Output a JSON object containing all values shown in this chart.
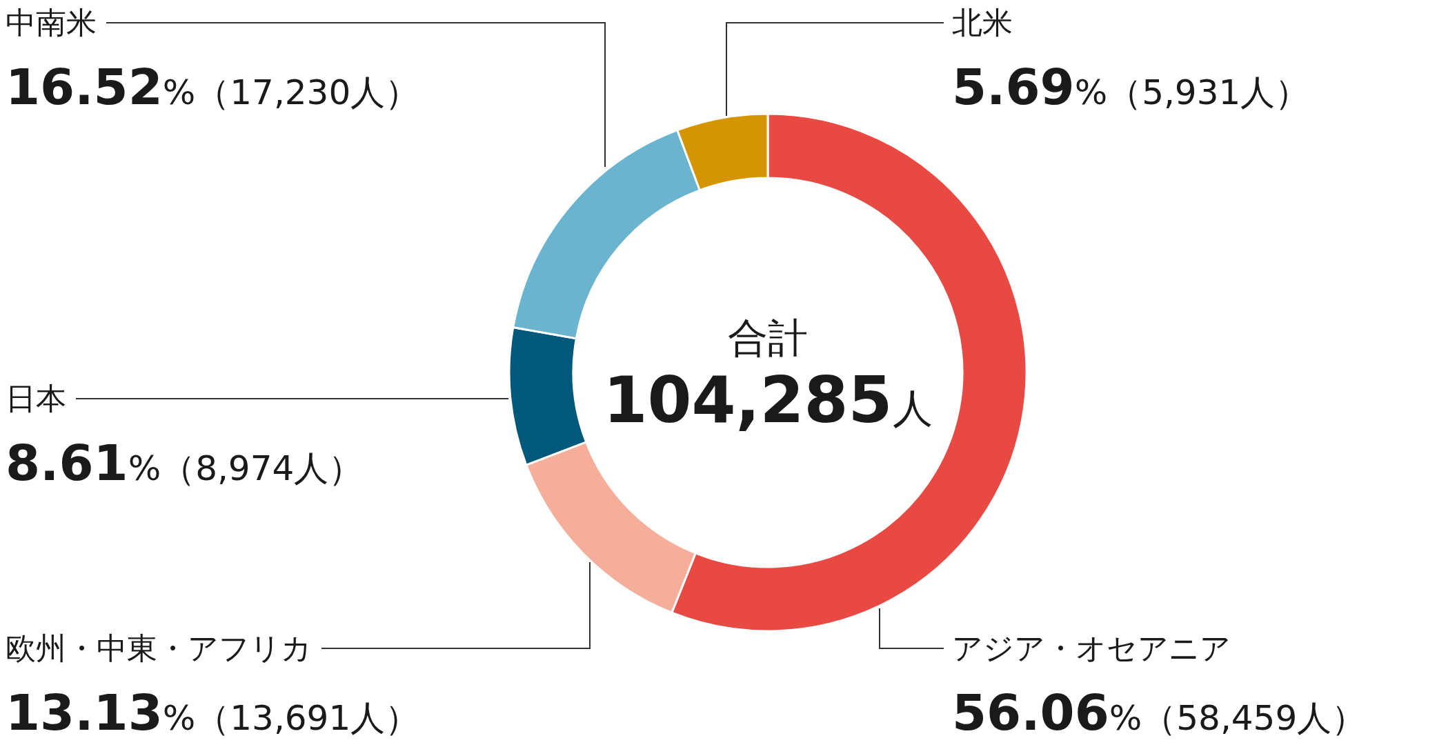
{
  "chart_data": {
    "type": "donut",
    "categories": [
      "アジア・オセアニア",
      "欧州・中東・アフリカ",
      "日本",
      "中南米",
      "北米"
    ],
    "values": [
      56.06,
      13.13,
      8.61,
      16.52,
      5.69
    ],
    "colors": [
      "#e84a43",
      "#f4ae9a",
      "#00587a",
      "#6ab4d0",
      "#d49500"
    ],
    "value_labels": [
      "**56.06**%（58,459人）",
      "**13.13**%（13,691人）",
      "**8.61**%（8,974人）",
      "**16.52**%（17,230人）",
      "**5.69**%（5,931人）"
    ],
    "annotations": [
      "合計",
      "**104,285**人"
    ]
  }
}
